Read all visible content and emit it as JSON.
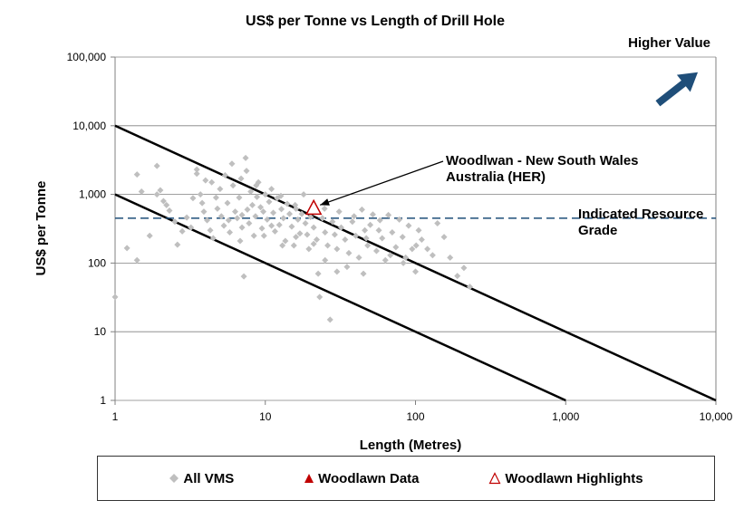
{
  "chart_data": {
    "type": "scatter",
    "title": "US$ per Tonne vs Length of Drill Hole",
    "xlabel": "Length (Metres)",
    "ylabel": "US$ per Tonne",
    "x_scale": "log",
    "y_scale": "log",
    "xlim": [
      1,
      10000
    ],
    "ylim": [
      1,
      100000
    ],
    "x_ticks": [
      1,
      10,
      100,
      1000,
      10000
    ],
    "x_tick_labels": [
      "1",
      "10",
      "100",
      "1,000",
      "10,000"
    ],
    "y_ticks": [
      1,
      10,
      100,
      1000,
      10000,
      100000
    ],
    "y_tick_labels": [
      "1",
      "10",
      "100",
      "1,000",
      "10,000",
      "100,000"
    ],
    "grid": "horizontal",
    "legend_position": "bottom",
    "legend": [
      "All VMS",
      "Woodlawn Data",
      "Woodlawn Highlights"
    ],
    "series": [
      {
        "name": "All VMS",
        "marker": "diamond",
        "color": "#BFBFBF",
        "points": [
          [
            1.0,
            32
          ],
          [
            1.2,
            165
          ],
          [
            1.4,
            1950
          ],
          [
            1.4,
            110
          ],
          [
            1.5,
            1100
          ],
          [
            1.7,
            250
          ],
          [
            1.9,
            2600
          ],
          [
            1.9,
            1000
          ],
          [
            2.0,
            1150
          ],
          [
            2.1,
            800
          ],
          [
            2.2,
            700
          ],
          [
            2.5,
            400
          ],
          [
            2.6,
            185
          ],
          [
            2.8,
            290
          ],
          [
            3.0,
            460
          ],
          [
            3.2,
            330
          ],
          [
            3.5,
            2300
          ],
          [
            3.5,
            2000
          ],
          [
            3.7,
            1000
          ],
          [
            3.8,
            750
          ],
          [
            3.9,
            560
          ],
          [
            4.0,
            1600
          ],
          [
            4.1,
            420
          ],
          [
            4.3,
            300
          ],
          [
            4.5,
            230
          ],
          [
            4.7,
            900
          ],
          [
            4.8,
            620
          ],
          [
            5.0,
            1200
          ],
          [
            5.1,
            480
          ],
          [
            5.3,
            350
          ],
          [
            5.4,
            1900
          ],
          [
            5.6,
            750
          ],
          [
            5.8,
            280
          ],
          [
            6.0,
            2800
          ],
          [
            6.1,
            1350
          ],
          [
            6.3,
            560
          ],
          [
            6.5,
            450
          ],
          [
            6.7,
            900
          ],
          [
            6.9,
            1700
          ],
          [
            7.0,
            330
          ],
          [
            7.2,
            64
          ],
          [
            7.4,
            3400
          ],
          [
            7.5,
            2200
          ],
          [
            7.6,
            600
          ],
          [
            7.8,
            380
          ],
          [
            8.0,
            1100
          ],
          [
            8.2,
            700
          ],
          [
            8.4,
            250
          ],
          [
            8.6,
            480
          ],
          [
            8.8,
            920
          ],
          [
            9.0,
            1500
          ],
          [
            9.3,
            650
          ],
          [
            9.5,
            320
          ],
          [
            9.7,
            560
          ],
          [
            10.0,
            1000
          ],
          [
            10.3,
            430
          ],
          [
            10.6,
            780
          ],
          [
            11.0,
            1200
          ],
          [
            11.3,
            540
          ],
          [
            11.6,
            290
          ],
          [
            12.0,
            880
          ],
          [
            12.4,
            360
          ],
          [
            12.8,
            610
          ],
          [
            13.2,
            450
          ],
          [
            13.6,
            210
          ],
          [
            14.0,
            730
          ],
          [
            14.5,
            520
          ],
          [
            15.0,
            340
          ],
          [
            15.5,
            180
          ],
          [
            16.0,
            620
          ],
          [
            16.5,
            430
          ],
          [
            17.0,
            270
          ],
          [
            17.5,
            520
          ],
          [
            18.0,
            1000
          ],
          [
            18.5,
            380
          ],
          [
            19.0,
            260
          ],
          [
            19.5,
            160
          ],
          [
            20.0,
            470
          ],
          [
            21.0,
            330
          ],
          [
            22.0,
            220
          ],
          [
            22.5,
            70
          ],
          [
            23.0,
            32
          ],
          [
            24.0,
            450
          ],
          [
            25.0,
            280
          ],
          [
            26.0,
            180
          ],
          [
            27.0,
            15
          ],
          [
            28.0,
            400
          ],
          [
            29.0,
            260
          ],
          [
            30.0,
            160
          ],
          [
            32.0,
            330
          ],
          [
            34.0,
            220
          ],
          [
            36.0,
            140
          ],
          [
            38.0,
            400
          ],
          [
            40.0,
            250
          ],
          [
            42.0,
            120
          ],
          [
            44.0,
            600
          ],
          [
            46.0,
            300
          ],
          [
            48.0,
            180
          ],
          [
            50.0,
            360
          ],
          [
            52.0,
            510
          ],
          [
            55.0,
            150
          ],
          [
            58.0,
            420
          ],
          [
            60.0,
            230
          ],
          [
            63.0,
            110
          ],
          [
            66.0,
            500
          ],
          [
            70.0,
            280
          ],
          [
            74.0,
            170
          ],
          [
            78.0,
            430
          ],
          [
            82.0,
            240
          ],
          [
            86.0,
            120
          ],
          [
            90.0,
            350
          ],
          [
            95.0,
            160
          ],
          [
            100.0,
            75
          ],
          [
            105.0,
            300
          ],
          [
            110.0,
            220
          ],
          [
            120.0,
            160
          ],
          [
            130.0,
            130
          ],
          [
            140.0,
            380
          ],
          [
            155.0,
            240
          ],
          [
            170.0,
            120
          ],
          [
            190.0,
            65
          ],
          [
            210.0,
            85
          ],
          [
            230.0,
            45
          ],
          [
            2.3,
            580
          ],
          [
            3.3,
            880
          ],
          [
            4.4,
            1500
          ],
          [
            5.7,
            420
          ],
          [
            6.8,
            210
          ],
          [
            8.7,
            1350
          ],
          [
            9.8,
            250
          ],
          [
            12.7,
            950
          ],
          [
            15.8,
            700
          ],
          [
            19.8,
            560
          ],
          [
            24.8,
            620
          ],
          [
            31.0,
            560
          ],
          [
            39.0,
            480
          ],
          [
            47.0,
            230
          ],
          [
            57.0,
            300
          ],
          [
            68.0,
            130
          ],
          [
            83.0,
            100
          ],
          [
            101.0,
            180
          ],
          [
            30.0,
            75
          ],
          [
            35.0,
            88
          ],
          [
            45.0,
            70
          ],
          [
            25.0,
            110
          ],
          [
            11.0,
            350
          ],
          [
            7.0,
            500
          ],
          [
            13.0,
            180
          ],
          [
            16.0,
            240
          ],
          [
            21.0,
            190
          ]
        ]
      },
      {
        "name": "Woodlawn Highlights",
        "marker": "triangle-open",
        "color": "#C00000",
        "points": [
          [
            21,
            620
          ]
        ]
      }
    ],
    "lines": [
      {
        "name": "upper-bound-line",
        "from": [
          1,
          10000
        ],
        "to": [
          10000,
          1
        ]
      },
      {
        "name": "lower-bound-line",
        "from": [
          1,
          1000
        ],
        "to": [
          1000,
          1
        ]
      }
    ],
    "reference_line": {
      "y": 450,
      "style": "dashed",
      "color": "#1F4E79",
      "label_line1": "Indicated Resource",
      "label_line2": "Grade"
    },
    "annotations": {
      "higher_value": "Higher Value",
      "woodlawn_line1": "Woodlwan - New South Wales",
      "woodlawn_line2": "Australia (HER)"
    },
    "colors": {
      "arrow": "#1F4E79",
      "gridline": "#808080",
      "bound_lines": "#000000",
      "woodlawn_data": "#C00000"
    }
  }
}
